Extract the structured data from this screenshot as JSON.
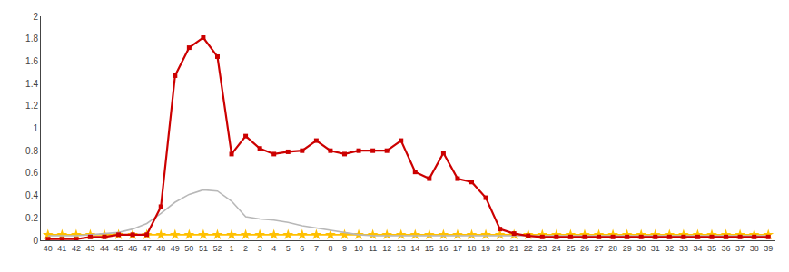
{
  "chart_data": {
    "type": "line",
    "categories": [
      "40",
      "41",
      "42",
      "43",
      "44",
      "45",
      "46",
      "47",
      "48",
      "49",
      "50",
      "51",
      "52",
      "1",
      "2",
      "3",
      "4",
      "5",
      "6",
      "7",
      "8",
      "9",
      "10",
      "11",
      "12",
      "13",
      "14",
      "15",
      "16",
      "17",
      "18",
      "19",
      "20",
      "21",
      "22",
      "23",
      "24",
      "25",
      "26",
      "27",
      "28",
      "29",
      "30",
      "31",
      "32",
      "33",
      "34",
      "35",
      "36",
      "37",
      "38",
      "39"
    ],
    "series": [
      {
        "color": "#ffc000",
        "marker": "star",
        "line_style": "solid",
        "values": [
          0.05,
          0.05,
          0.05,
          0.05,
          0.05,
          0.05,
          0.05,
          0.05,
          0.05,
          0.05,
          0.05,
          0.05,
          0.05,
          0.05,
          0.05,
          0.05,
          0.05,
          0.05,
          0.05,
          0.05,
          0.05,
          0.05,
          0.05,
          0.05,
          0.05,
          0.05,
          0.05,
          0.05,
          0.05,
          0.05,
          0.05,
          0.05,
          0.05,
          0.05,
          0.05,
          0.05,
          0.05,
          0.05,
          0.05,
          0.05,
          0.05,
          0.05,
          0.05,
          0.05,
          0.05,
          0.05,
          0.05,
          0.05,
          0.05,
          0.05,
          0.05,
          0.05
        ]
      },
      {
        "color": "#b8b8b8",
        "marker": "none",
        "line_style": "solid",
        "values": [
          0.04,
          0.04,
          0.04,
          0.05,
          0.06,
          0.07,
          0.1,
          0.15,
          0.24,
          0.34,
          0.41,
          0.45,
          0.44,
          0.35,
          0.21,
          0.19,
          0.18,
          0.16,
          0.13,
          0.11,
          0.09,
          0.07,
          0.05,
          0.04,
          0.04,
          0.04,
          0.04,
          0.04,
          0.04,
          0.04,
          0.04,
          0.04,
          0.04,
          0.04,
          0.04,
          0.04,
          0.04,
          0.04,
          0.04,
          0.04,
          0.04,
          0.04,
          0.04,
          0.04,
          0.04,
          0.04,
          0.04,
          0.04,
          0.04,
          0.04,
          0.04,
          0.04
        ]
      },
      {
        "color": "#cc0000",
        "marker": "square",
        "line_style": "solid",
        "values": [
          0.01,
          0.01,
          0.01,
          0.03,
          0.03,
          0.05,
          0.05,
          0.05,
          0.3,
          1.47,
          1.72,
          1.81,
          1.64,
          0.77,
          0.93,
          0.82,
          0.77,
          0.79,
          0.8,
          0.89,
          0.8,
          0.77,
          0.8,
          0.8,
          0.8,
          0.89,
          0.61,
          0.55,
          0.78,
          0.55,
          0.52,
          0.38,
          0.1,
          0.06,
          0.04,
          0.03,
          0.03,
          0.03,
          0.03,
          0.03,
          0.03,
          0.03,
          0.03,
          0.03,
          0.03,
          0.03,
          0.03,
          0.03,
          0.03,
          0.03,
          0.03,
          0.03
        ]
      }
    ],
    "ylim": [
      0,
      2.0
    ],
    "yticks": [
      0.0,
      0.2,
      0.4,
      0.6,
      0.8,
      1.0,
      1.2,
      1.4,
      1.6,
      1.8,
      2.0
    ],
    "grid": false
  }
}
